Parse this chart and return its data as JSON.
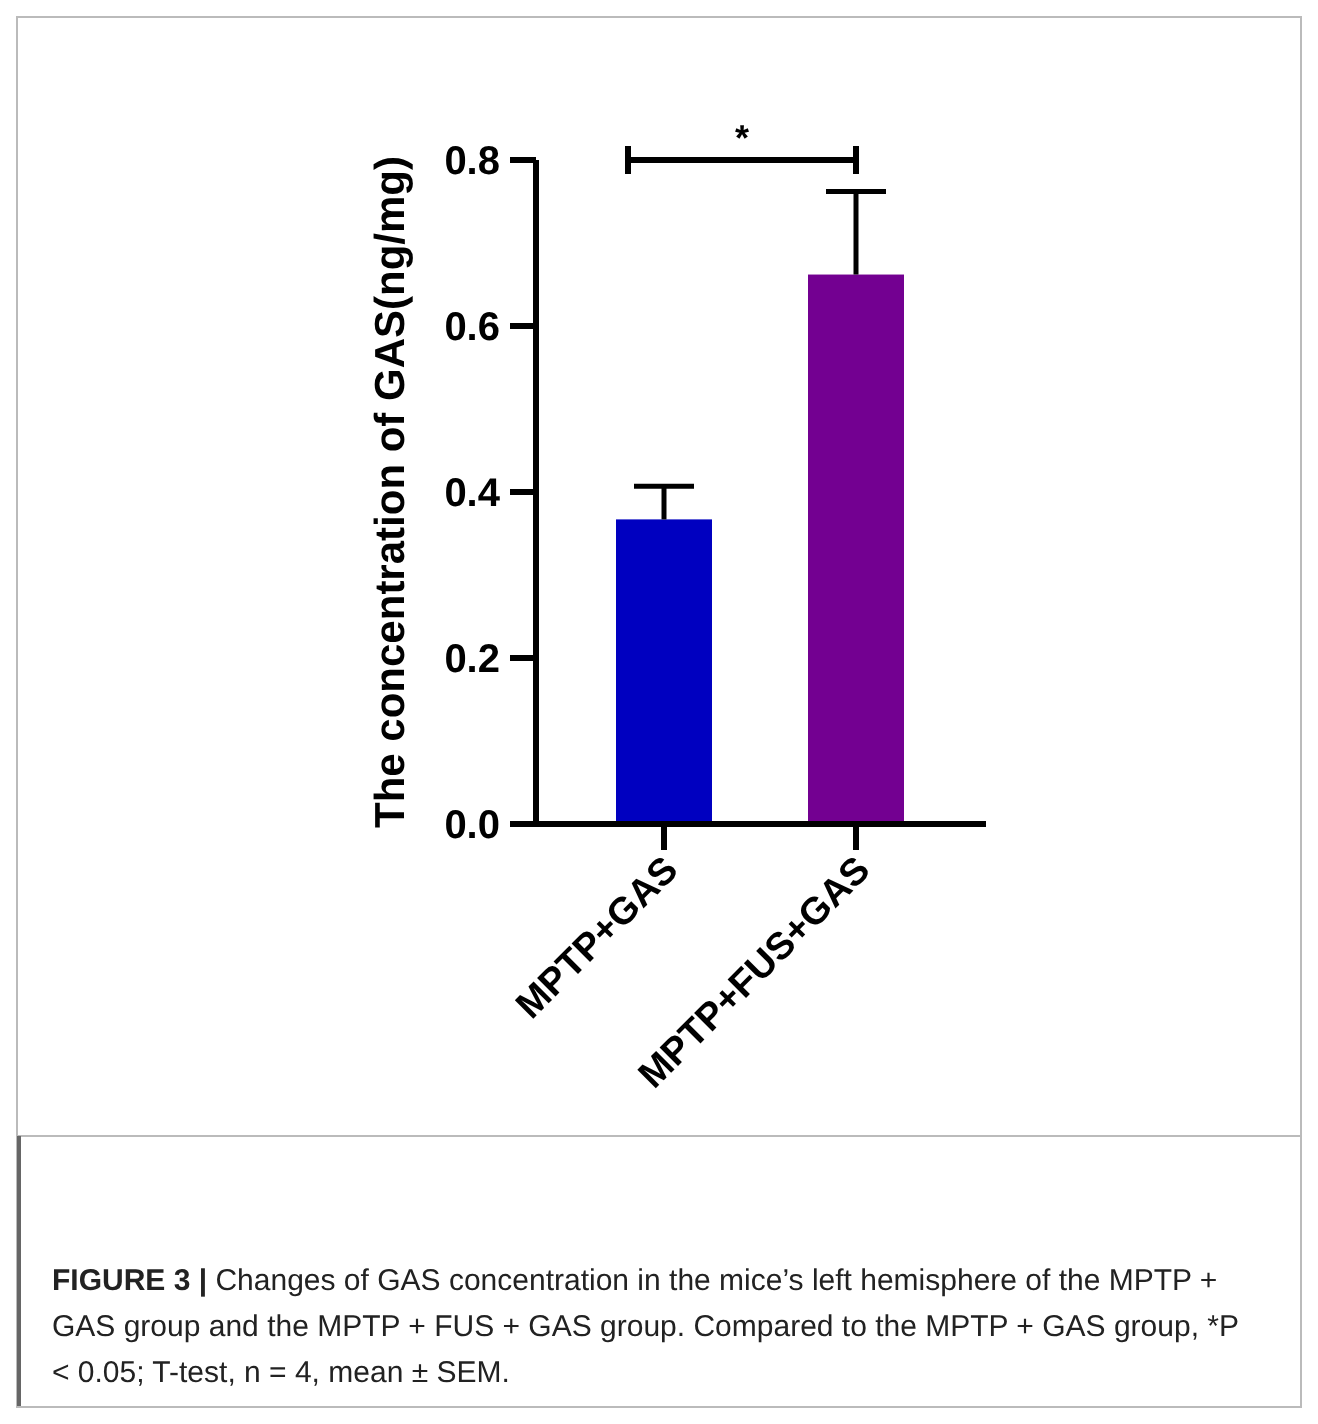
{
  "chart_data": {
    "type": "bar",
    "ylabel": "The concentration of GAS(ng/mg)",
    "categories": [
      "MPTP+GAS",
      "MPTP+FUS+GAS"
    ],
    "values": [
      0.367,
      0.662
    ],
    "errors": [
      0.04,
      0.1
    ],
    "colors": [
      "#0000c0",
      "#730091"
    ],
    "ylim": [
      0,
      0.8
    ],
    "yticks": [
      {
        "value": 0,
        "label": "0.0"
      },
      0.2,
      0.4,
      0.6,
      0.8
    ],
    "grid": false,
    "annotations": [
      "*",
      "FIGURE 3 |",
      "Changes of GAS concentration in the mice’s left hemisphere of the MPTP + GAS group and the MPTP + FUS + GAS group. Compared to the MPTP + GAS group, *P < 0.05; T-test, n = 4, mean ± SEM."
    ]
  }
}
